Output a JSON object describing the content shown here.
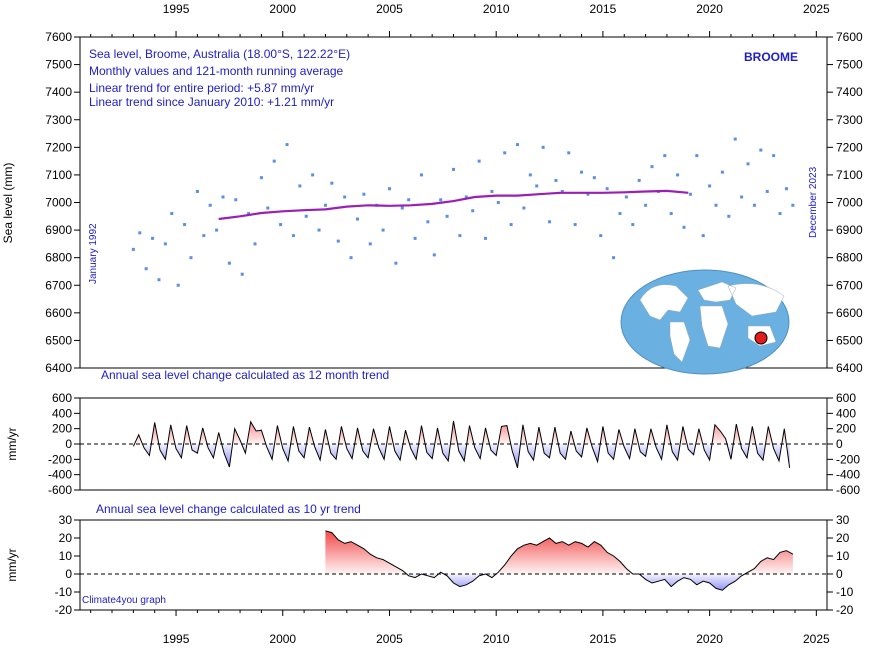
{
  "chart_data": [
    {
      "type": "scatter",
      "panel": "sea-level",
      "title": "Sea level, Broome, Australia (18.00°S, 122.22°E)",
      "info_lines": [
        "Sea level, Broome, Australia (18.00°S, 122.22°E)",
        "Monthly values and 121-month running average",
        "Linear trend for entire period: +5.87 mm/yr",
        "Linear trend since January 2010: +1.21 mm/yr"
      ],
      "station_label": "BROOME",
      "start_label": "January 1992",
      "end_label": "December 2023",
      "ylabel": "Sea level (mm)",
      "xlim": [
        1990.5,
        2025.5
      ],
      "ylim": [
        6400,
        7600
      ],
      "x_ticks": [
        1995,
        2000,
        2005,
        2010,
        2015,
        2020,
        2025
      ],
      "y_ticks": [
        6400,
        6500,
        6600,
        6700,
        6800,
        6900,
        7000,
        7100,
        7200,
        7300,
        7400,
        7500,
        7600
      ],
      "series": [
        {
          "name": "Monthly values",
          "color": "#5a8fe6",
          "x": [
            1993.0,
            1993.3,
            1993.6,
            1993.9,
            1994.2,
            1994.5,
            1994.8,
            1995.1,
            1995.4,
            1995.7,
            1996.0,
            1996.3,
            1996.6,
            1996.9,
            1997.2,
            1997.5,
            1997.8,
            1998.1,
            1998.4,
            1998.7,
            1999.0,
            1999.3,
            1999.6,
            1999.9,
            2000.2,
            2000.5,
            2000.8,
            2001.1,
            2001.4,
            2001.7,
            2002.0,
            2002.3,
            2002.6,
            2002.9,
            2003.2,
            2003.5,
            2003.8,
            2004.1,
            2004.4,
            2004.7,
            2005.0,
            2005.3,
            2005.6,
            2005.9,
            2006.2,
            2006.5,
            2006.8,
            2007.1,
            2007.4,
            2007.7,
            2008.0,
            2008.3,
            2008.6,
            2008.9,
            2009.2,
            2009.5,
            2009.8,
            2010.1,
            2010.4,
            2010.7,
            2011.0,
            2011.3,
            2011.6,
            2011.9,
            2012.2,
            2012.5,
            2012.8,
            2013.1,
            2013.4,
            2013.7,
            2014.0,
            2014.3,
            2014.6,
            2014.9,
            2015.2,
            2015.5,
            2015.8,
            2016.1,
            2016.4,
            2016.7,
            2017.0,
            2017.3,
            2017.6,
            2017.9,
            2018.2,
            2018.5,
            2018.8,
            2019.1,
            2019.4,
            2019.7,
            2020.0,
            2020.3,
            2020.6,
            2020.9,
            2021.2,
            2021.5,
            2021.8,
            2022.1,
            2022.4,
            2022.7,
            2023.0,
            2023.3,
            2023.6,
            2023.9
          ],
          "y": [
            6830,
            6890,
            6760,
            6870,
            6720,
            6850,
            6960,
            6700,
            6920,
            6800,
            7040,
            6880,
            6990,
            6900,
            7020,
            6780,
            7010,
            6740,
            6960,
            6850,
            7090,
            6980,
            7150,
            6920,
            7210,
            6880,
            7060,
            6950,
            7100,
            6900,
            6990,
            7070,
            6860,
            7020,
            6800,
            6940,
            7030,
            6850,
            6990,
            6900,
            7050,
            6780,
            6980,
            7010,
            6870,
            7100,
            6930,
            6810,
            7010,
            6950,
            7120,
            6880,
            7020,
            6970,
            7150,
            6870,
            7040,
            7000,
            7180,
            6920,
            7210,
            6980,
            7100,
            7060,
            7200,
            6930,
            7080,
            7040,
            7180,
            6920,
            7110,
            7030,
            7090,
            6880,
            7050,
            6800,
            6960,
            7020,
            6920,
            7080,
            6990,
            7130,
            7040,
            7170,
            6960,
            7100,
            6910,
            7030,
            7170,
            6880,
            7060,
            6990,
            7110,
            6950,
            7230,
            7020,
            7140,
            6990,
            7190,
            7040,
            7170,
            6960,
            7050,
            6990
          ]
        },
        {
          "name": "121-month running average",
          "color": "#9a1fb4",
          "x": [
            1997,
            1998,
            1999,
            2000,
            2001,
            2002,
            2003,
            2004,
            2005,
            2006,
            2007,
            2008,
            2009,
            2010,
            2011,
            2012,
            2013,
            2014,
            2015,
            2016,
            2017,
            2018,
            2019
          ],
          "y": [
            6940,
            6950,
            6962,
            6968,
            6972,
            6975,
            6985,
            6990,
            6988,
            6990,
            6995,
            7005,
            7020,
            7025,
            7025,
            7030,
            7035,
            7035,
            7035,
            7037,
            7040,
            7042,
            7035
          ]
        }
      ]
    },
    {
      "type": "area",
      "panel": "annual-12-month",
      "title": "Annual sea level change calculated as 12 month trend",
      "ylabel": "mm/yr",
      "xlim": [
        1990.5,
        2025.5
      ],
      "ylim": [
        -600,
        600
      ],
      "y_ticks": [
        -600,
        -400,
        -200,
        0,
        200,
        400,
        600
      ],
      "series": [
        {
          "name": "12 month trend",
          "x": [
            1993.0,
            1993.25,
            1993.5,
            1993.75,
            1994.0,
            1994.25,
            1994.5,
            1994.75,
            1995.0,
            1995.25,
            1995.5,
            1995.75,
            1996.0,
            1996.25,
            1996.5,
            1996.75,
            1997.0,
            1997.25,
            1997.5,
            1997.75,
            1998.0,
            1998.25,
            1998.5,
            1998.75,
            1999.0,
            1999.25,
            1999.5,
            1999.75,
            2000.0,
            2000.25,
            2000.5,
            2000.75,
            2001.0,
            2001.25,
            2001.5,
            2001.75,
            2002.0,
            2002.25,
            2002.5,
            2002.75,
            2003.0,
            2003.25,
            2003.5,
            2003.75,
            2004.0,
            2004.25,
            2004.5,
            2004.75,
            2005.0,
            2005.25,
            2005.5,
            2005.75,
            2006.0,
            2006.25,
            2006.5,
            2006.75,
            2007.0,
            2007.25,
            2007.5,
            2007.75,
            2008.0,
            2008.25,
            2008.5,
            2008.75,
            2009.0,
            2009.25,
            2009.5,
            2009.75,
            2010.0,
            2010.25,
            2010.5,
            2010.75,
            2011.0,
            2011.25,
            2011.5,
            2011.75,
            2012.0,
            2012.25,
            2012.5,
            2012.75,
            2013.0,
            2013.25,
            2013.5,
            2013.75,
            2014.0,
            2014.25,
            2014.5,
            2014.75,
            2015.0,
            2015.25,
            2015.5,
            2015.75,
            2016.0,
            2016.25,
            2016.5,
            2016.75,
            2017.0,
            2017.25,
            2017.5,
            2017.75,
            2018.0,
            2018.25,
            2018.5,
            2018.75,
            2019.0,
            2019.25,
            2019.5,
            2019.75,
            2020.0,
            2020.25,
            2020.5,
            2020.75,
            2021.0,
            2021.25,
            2021.5,
            2021.75,
            2022.0,
            2022.25,
            2022.5,
            2022.75,
            2023.0,
            2023.25,
            2023.5,
            2023.75
          ],
          "y": [
            -30,
            120,
            -50,
            -150,
            280,
            -80,
            -200,
            250,
            -60,
            -180,
            240,
            -80,
            -120,
            210,
            -50,
            -180,
            150,
            -120,
            -300,
            200,
            50,
            -120,
            290,
            170,
            180,
            -40,
            -200,
            240,
            -60,
            -220,
            230,
            -90,
            -180,
            220,
            -40,
            -210,
            190,
            -120,
            -200,
            230,
            -60,
            -190,
            210,
            -90,
            -180,
            200,
            -50,
            -200,
            230,
            -90,
            -210,
            180,
            -60,
            -200,
            240,
            -110,
            -190,
            210,
            -120,
            -220,
            300,
            -90,
            -220,
            240,
            -50,
            -190,
            210,
            -80,
            -150,
            230,
            240,
            -90,
            -310,
            250,
            -100,
            -210,
            220,
            -120,
            -180,
            220,
            -120,
            -200,
            170,
            -90,
            -170,
            210,
            -40,
            -230,
            230,
            -120,
            -200,
            190,
            -40,
            -190,
            200,
            -100,
            -160,
            200,
            -50,
            -200,
            250,
            -100,
            -210,
            230,
            -70,
            -140,
            200,
            -80,
            -210,
            250,
            170,
            70,
            -200,
            260,
            -60,
            -180,
            230,
            -120,
            -210,
            230,
            -60,
            -220,
            200,
            -310
          ]
        }
      ]
    },
    {
      "type": "area",
      "panel": "annual-10-yr",
      "title": "Annual sea level change calculated as 10 yr trend",
      "ylabel": "mm/yr",
      "footer": "Climate4you graph",
      "xlim": [
        1990.5,
        2025.5
      ],
      "ylim": [
        -20,
        30
      ],
      "x_ticks": [
        1995,
        2000,
        2005,
        2010,
        2015,
        2020,
        2025
      ],
      "y_ticks": [
        -20,
        -10,
        0,
        10,
        20,
        30
      ],
      "series": [
        {
          "name": "10 yr trend",
          "x": [
            2002.0,
            2002.3,
            2002.6,
            2002.9,
            2003.2,
            2003.5,
            2003.8,
            2004.1,
            2004.4,
            2004.7,
            2005.0,
            2005.3,
            2005.6,
            2005.9,
            2006.2,
            2006.5,
            2006.8,
            2007.1,
            2007.4,
            2007.7,
            2008.0,
            2008.3,
            2008.6,
            2008.9,
            2009.2,
            2009.5,
            2009.8,
            2010.1,
            2010.4,
            2010.7,
            2011.0,
            2011.3,
            2011.6,
            2011.9,
            2012.2,
            2012.5,
            2012.8,
            2013.1,
            2013.4,
            2013.7,
            2014.0,
            2014.3,
            2014.6,
            2014.9,
            2015.2,
            2015.5,
            2015.8,
            2016.1,
            2016.4,
            2016.7,
            2017.0,
            2017.3,
            2017.6,
            2017.9,
            2018.2,
            2018.5,
            2018.8,
            2019.1,
            2019.4,
            2019.7,
            2020.0,
            2020.3,
            2020.6,
            2020.9,
            2021.2,
            2021.5,
            2021.8,
            2022.1,
            2022.4,
            2022.7,
            2023.0,
            2023.3,
            2023.6,
            2023.9
          ],
          "y": [
            24,
            23,
            19,
            17,
            18,
            16,
            14,
            11,
            9,
            8,
            6,
            4,
            2,
            -1,
            -2,
            0,
            -1,
            -2,
            1,
            -1,
            -5,
            -7,
            -6,
            -4,
            -1,
            0,
            -2,
            1,
            5,
            10,
            14,
            16,
            17,
            16,
            18,
            20,
            17,
            18,
            16,
            18,
            17,
            15,
            18,
            16,
            12,
            10,
            7,
            3,
            0,
            0,
            -3,
            -5,
            -4,
            -3,
            -7,
            -4,
            -2,
            -3,
            -6,
            -4,
            -5,
            -8,
            -9,
            -6,
            -4,
            -1,
            1,
            3,
            7,
            9,
            8,
            12,
            13,
            11
          ]
        }
      ]
    }
  ]
}
